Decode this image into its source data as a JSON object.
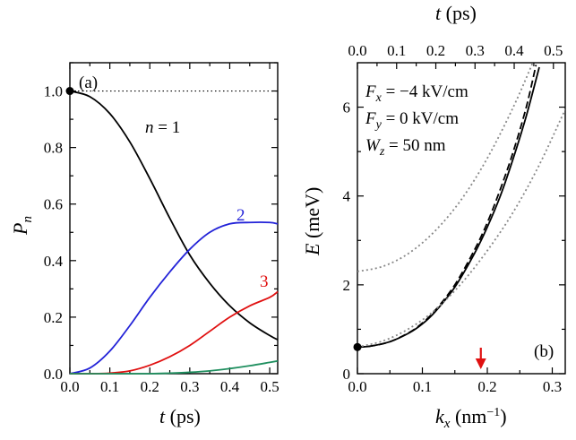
{
  "chart_data": [
    {
      "panel": "(a)",
      "type": "line",
      "xlabel": "t (ps)",
      "ylabel": "P_n",
      "xlim": [
        0,
        0.52
      ],
      "ylim": [
        0,
        1.1
      ],
      "x_ticks": [
        "0.0",
        "0.1",
        "0.2",
        "0.3",
        "0.4",
        "0.5"
      ],
      "y_ticks": [
        "0.0",
        "0.2",
        "0.4",
        "0.6",
        "0.8",
        "1.0"
      ],
      "series": [
        {
          "name": "n = 1",
          "color": "#000000",
          "x": [
            0,
            0.05,
            0.1,
            0.15,
            0.2,
            0.25,
            0.3,
            0.35,
            0.4,
            0.45,
            0.5,
            0.52
          ],
          "y": [
            1.0,
            0.98,
            0.92,
            0.82,
            0.69,
            0.55,
            0.42,
            0.32,
            0.24,
            0.18,
            0.135,
            0.12
          ]
        },
        {
          "name": "2",
          "color": "#2323d8",
          "x": [
            0,
            0.05,
            0.1,
            0.15,
            0.2,
            0.25,
            0.3,
            0.35,
            0.4,
            0.45,
            0.5,
            0.52
          ],
          "y": [
            0.0,
            0.02,
            0.08,
            0.17,
            0.27,
            0.36,
            0.44,
            0.5,
            0.53,
            0.535,
            0.535,
            0.53
          ]
        },
        {
          "name": "3",
          "color": "#e01010",
          "x": [
            0,
            0.05,
            0.1,
            0.15,
            0.2,
            0.25,
            0.3,
            0.35,
            0.4,
            0.45,
            0.5,
            0.52
          ],
          "y": [
            0.0,
            0.0,
            0.002,
            0.01,
            0.03,
            0.06,
            0.1,
            0.15,
            0.2,
            0.24,
            0.27,
            0.29
          ]
        },
        {
          "name": "",
          "color": "#1f8f5f",
          "x": [
            0,
            0.1,
            0.2,
            0.25,
            0.3,
            0.35,
            0.4,
            0.45,
            0.5,
            0.52
          ],
          "y": [
            0.0,
            0.0,
            0.0,
            0.002,
            0.005,
            0.01,
            0.018,
            0.028,
            0.04,
            0.045
          ]
        }
      ],
      "dotted_ref_y": 1.0,
      "start_marker": {
        "x": 0,
        "y": 1.0
      },
      "annotations": {
        "n1": "n = 1",
        "n2": "2",
        "n3": "3"
      }
    },
    {
      "panel": "(b)",
      "type": "line",
      "xlabel": "k_x (nm^-1)",
      "ylabel": "E (meV)",
      "top_xlabel": "t (ps)",
      "xlim": [
        0,
        0.32
      ],
      "ylim": [
        0,
        7
      ],
      "x_ticks": [
        "0.0",
        "0.1",
        "0.2",
        "0.3"
      ],
      "top_ticks": [
        "0.0",
        "0.1",
        "0.2",
        "0.3",
        "0.4",
        "0.5"
      ],
      "y_ticks": [
        "0",
        "2",
        "4",
        "6"
      ],
      "params": [
        "F_x = −4 kV/cm",
        "F_y = 0 kV/cm",
        "W_z = 50 nm"
      ],
      "series": [
        {
          "style": "solid",
          "color": "#000000",
          "x": [
            0,
            0.02,
            0.05,
            0.08,
            0.1,
            0.12,
            0.15,
            0.18,
            0.2,
            0.22,
            0.24,
            0.26,
            0.28
          ],
          "y": [
            0.6,
            0.62,
            0.72,
            0.92,
            1.12,
            1.4,
            1.95,
            2.7,
            3.3,
            4.0,
            4.85,
            5.8,
            6.9
          ]
        },
        {
          "style": "dashed",
          "color": "#000000",
          "x": [
            0,
            0.02,
            0.05,
            0.08,
            0.1,
            0.12,
            0.15,
            0.18,
            0.2,
            0.22,
            0.24,
            0.26,
            0.275
          ],
          "y": [
            0.6,
            0.62,
            0.72,
            0.93,
            1.14,
            1.43,
            2.0,
            2.78,
            3.4,
            4.15,
            5.0,
            6.0,
            6.95
          ]
        },
        {
          "style": "dotted",
          "color": "#888888",
          "x": [
            0,
            0.04,
            0.08,
            0.12,
            0.16,
            0.2,
            0.24,
            0.28,
            0.32
          ],
          "y": [
            0.6,
            0.74,
            1.02,
            1.44,
            2.03,
            2.77,
            3.64,
            4.7,
            5.95
          ]
        },
        {
          "style": "dotted",
          "color": "#888888",
          "x": [
            0,
            0.04,
            0.08,
            0.12,
            0.16,
            0.2,
            0.24,
            0.27
          ],
          "y": [
            2.3,
            2.42,
            2.72,
            3.22,
            3.92,
            4.85,
            6.0,
            7.0
          ]
        }
      ],
      "start_marker": {
        "x": 0,
        "y": 0.6
      },
      "arrow_x": 0.19,
      "arrow_color": "#e01010"
    }
  ]
}
